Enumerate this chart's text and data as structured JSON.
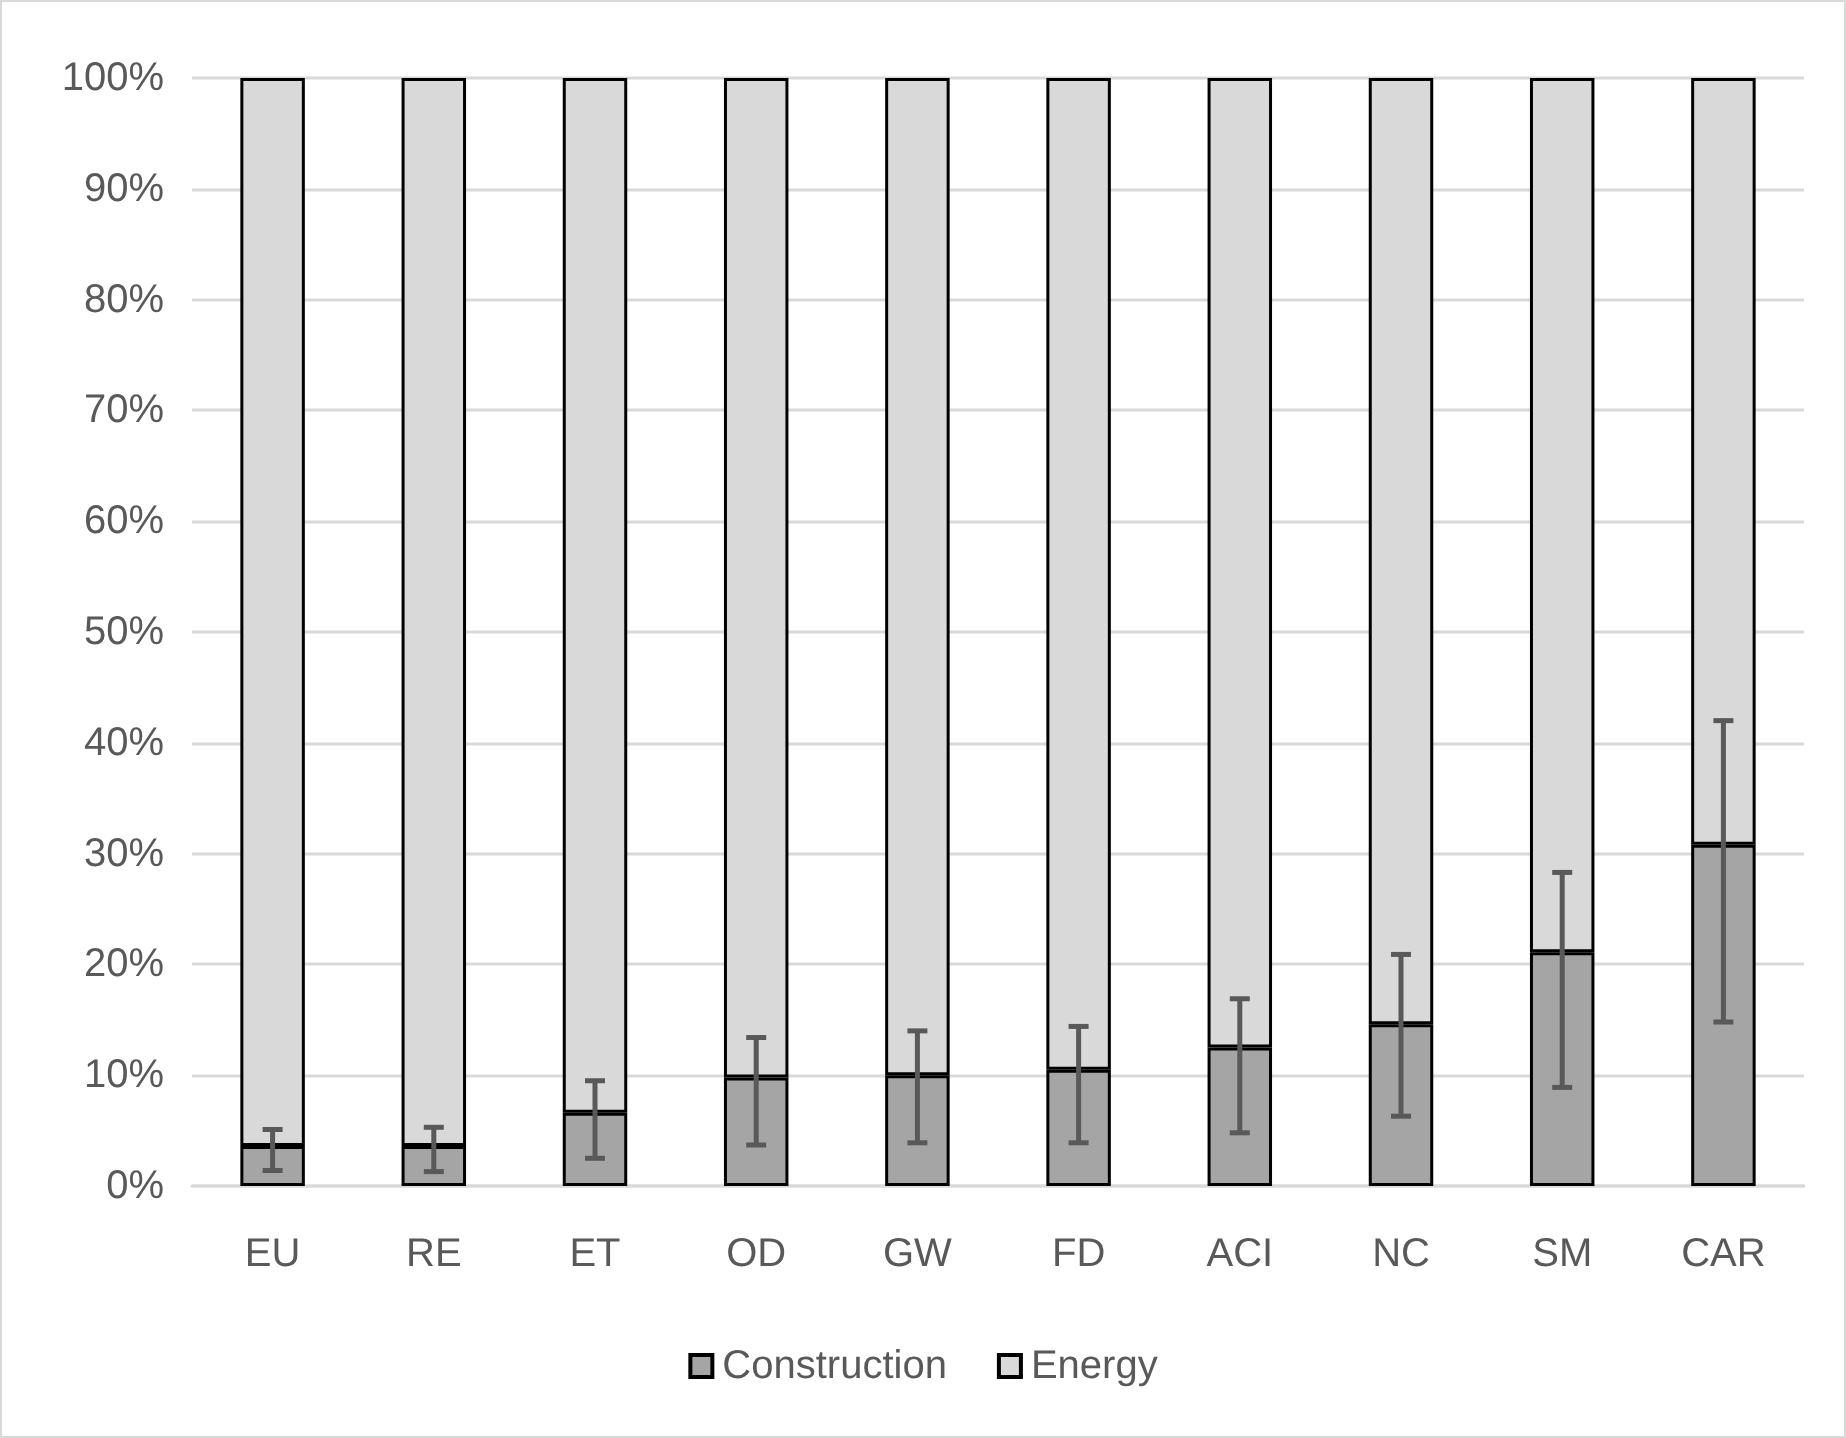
{
  "chart_data": {
    "type": "bar",
    "stacked": true,
    "categories": [
      "EU",
      "RE",
      "ET",
      "OD",
      "GW",
      "FD",
      "ACI",
      "NC",
      "SM",
      "CAR"
    ],
    "series": [
      {
        "name": "Construction",
        "color": "#a5a5a5",
        "values": [
          3.6,
          3.6,
          6.6,
          9.8,
          10.0,
          10.5,
          12.5,
          14.6,
          21.1,
          30.8
        ],
        "errors": [
          [
            1.4,
            5.1
          ],
          [
            1.3,
            5.3
          ],
          [
            2.5,
            9.5
          ],
          [
            3.7,
            13.4
          ],
          [
            3.9,
            14.0
          ],
          [
            3.9,
            14.4
          ],
          [
            4.8,
            16.9
          ],
          [
            6.3,
            20.9
          ],
          [
            8.9,
            28.3
          ],
          [
            14.8,
            42.0
          ]
        ]
      },
      {
        "name": "Energy",
        "color": "#d9d9d9",
        "values": [
          96.4,
          96.4,
          93.4,
          90.2,
          90.0,
          89.5,
          87.5,
          85.4,
          78.9,
          69.2
        ]
      }
    ],
    "ylim": [
      0,
      100
    ],
    "yticks": [
      {
        "value": 0,
        "label": "0%"
      },
      {
        "value": 10,
        "label": "10%"
      },
      {
        "value": 20,
        "label": "20%"
      },
      {
        "value": 30,
        "label": "30%"
      },
      {
        "value": 40,
        "label": "40%"
      },
      {
        "value": 50,
        "label": "50%"
      },
      {
        "value": 60,
        "label": "60%"
      },
      {
        "value": 70,
        "label": "70%"
      },
      {
        "value": 80,
        "label": "80%"
      },
      {
        "value": 90,
        "label": "90%"
      },
      {
        "value": 100,
        "label": "100%"
      }
    ],
    "grid": "y",
    "legend": "bottom"
  }
}
